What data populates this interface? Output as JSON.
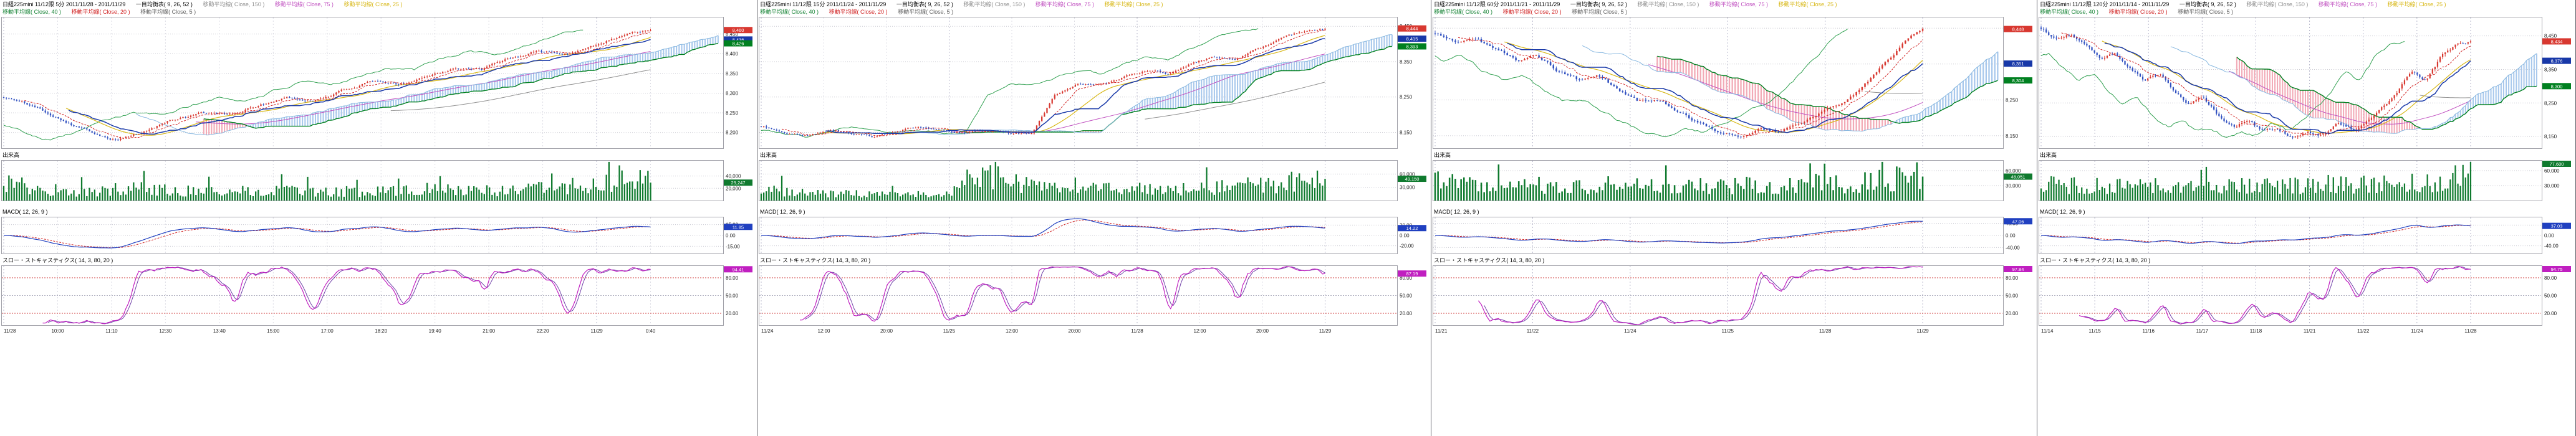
{
  "colors": {
    "up": "#d83830",
    "down": "#3050c0",
    "cloud_up": "#a8c8ec",
    "cloud_down": "#f2aab6",
    "tenkan": "#d02020",
    "kijun": "#1838a8",
    "senkou_a": "#88b8e0",
    "senkou_b": "#008020",
    "chikou": "#30a050",
    "ma25": "#d8b818",
    "ma75": "#c050c0",
    "ma150": "#909090",
    "ma40": "#108030",
    "ma20": "#d02020",
    "ma5": "#606060",
    "ichimoku": "#000000",
    "volume": "#0f7a2e",
    "macd": "#2040c0",
    "macd_signal": "#d02020",
    "stoch_k": "#c01fc0",
    "stoch_d": "#7040a8",
    "grid": "#c8c8d0",
    "axis_text": "#222222",
    "border": "#a0a0a8",
    "guide": "#d04040"
  },
  "chart_data": [
    {
      "type": "candlestick",
      "title": "日経225mini 11/12限 5分 2011/11/28 - 2011/11/29",
      "timeframe": "5分",
      "legend": {
        "ichimoku": "一目均衡表( 9, 26, 52 )",
        "ma150": "移動平均線( Close, 150 )",
        "ma75": "移動平均線( Close, 75 )",
        "ma25": "移動平均線( Close, 25 )",
        "ma40": "移動平均線( Close, 40 )",
        "ma20": "移動平均線( Close, 20 )",
        "ma5": "移動平均線( Close, 5 )"
      },
      "sections": {
        "volume": "出来高",
        "macd": "MACD( 12, 26, 9 )",
        "stoch": "スロー・ストキャスティクス( 14, 3, 80, 20 )"
      },
      "x_labels": [
        "11/28",
        "10:00",
        "11:10",
        "12:30",
        "13:40",
        "15:00",
        "17:00",
        "18:20",
        "19:40",
        "21:00",
        "22:20",
        "11/29",
        "0:40"
      ],
      "y_range": [
        8160,
        8492
      ],
      "y_ticks": [
        8450,
        8400,
        8350,
        8300,
        8250,
        8200
      ],
      "close_anchors": [
        8290,
        8268,
        8238,
        8205,
        8185,
        8202,
        8232,
        8252,
        8242,
        8266,
        8288,
        8280,
        8306,
        8326,
        8318,
        8344,
        8366,
        8358,
        8386,
        8406,
        8398,
        8424,
        8446,
        8462
      ],
      "volume_anchors": [
        30000,
        18000,
        15000,
        21000,
        16000,
        14000,
        17500,
        15000,
        13500,
        16500,
        19500,
        16000,
        19000,
        23000,
        29000,
        40000
      ],
      "volume_max": 65000,
      "volume_ticks": [
        40000,
        20000
      ],
      "macd_range": [
        -25,
        25
      ],
      "macd_ticks": [
        15,
        0,
        -15
      ],
      "stoch_ticks": [
        80,
        50,
        20
      ],
      "n_bars": 250,
      "noise_amp": 5,
      "seed": 101
    },
    {
      "type": "candlestick",
      "title": "日経225mini 11/12限 15分 2011/11/24 - 2011/11/29",
      "timeframe": "15分",
      "legend": {
        "ichimoku": "一目均衡表( 9, 26, 52 )",
        "ma150": "移動平均線( Close, 150 )",
        "ma75": "移動平均線( Close, 75 )",
        "ma25": "移動平均線( Close, 25 )",
        "ma40": "移動平均線( Close, 40 )",
        "ma20": "移動平均線( Close, 20 )",
        "ma5": "移動平均線( Close, 5 )"
      },
      "sections": {
        "volume": "出来高",
        "macd": "MACD( 12, 26, 9 )",
        "stoch": "スロー・ストキャスティクス( 14, 3, 80, 20 )"
      },
      "x_labels": [
        "11/24",
        "12:00",
        "20:00",
        "11/25",
        "12:00",
        "20:00",
        "11/28",
        "12:00",
        "20:00",
        "11/29"
      ],
      "y_range": [
        8105,
        8475
      ],
      "y_ticks": [
        8450,
        8350,
        8250,
        8150
      ],
      "close_anchors": [
        8168,
        8152,
        8142,
        8156,
        8146,
        8136,
        8150,
        8162,
        8150,
        8144,
        8156,
        8150,
        8148,
        8256,
        8292,
        8282,
        8302,
        8322,
        8312,
        8342,
        8362,
        8356,
        8386,
        8412,
        8430,
        8442
      ],
      "volume_anchors": [
        24000,
        18000,
        16000,
        14500,
        15000,
        16500,
        60000,
        38000,
        30000,
        26000,
        28000,
        24500,
        30000,
        34000,
        41000,
        50000
      ],
      "volume_max": 90000,
      "volume_ticks": [
        60000,
        30000
      ],
      "macd_range": [
        -35,
        35
      ],
      "macd_ticks": [
        20,
        0,
        -20
      ],
      "stoch_ticks": [
        80,
        50,
        20
      ],
      "n_bars": 220,
      "noise_amp": 4.5,
      "seed": 202
    },
    {
      "type": "candlestick",
      "title": "日経225mini 11/12限 60分 2011/11/21 - 2011/11/29",
      "timeframe": "60分",
      "legend": {
        "ichimoku": "一目均衡表( 9, 26, 52 )",
        "ma150": "移動平均線( Close, 150 )",
        "ma75": "移動平均線( Close, 75 )",
        "ma25": "移動平均線( Close, 25 )",
        "ma40": "移動平均線( Close, 40 )",
        "ma20": "移動平均線( Close, 20 )",
        "ma5": "移動平均線( Close, 5 )"
      },
      "sections": {
        "volume": "出来高",
        "macd": "MACD( 12, 26, 9 )",
        "stoch": "スロー・ストキャスティクス( 14, 3, 80, 20 )"
      },
      "x_labels": [
        "11/21",
        "11/22",
        "11/24",
        "11/25",
        "11/28",
        "11/29"
      ],
      "y_range": [
        8115,
        8480
      ],
      "y_ticks": [
        8450,
        8350,
        8250,
        8150
      ],
      "close_anchors": [
        8432,
        8412,
        8422,
        8392,
        8362,
        8372,
        8332,
        8302,
        8312,
        8272,
        8242,
        8252,
        8212,
        8182,
        8162,
        8150,
        8172,
        8160,
        8182,
        8212,
        8242,
        8282,
        8342,
        8402,
        8442
      ],
      "volume_anchors": [
        42000,
        30000,
        26000,
        33000,
        28000,
        24500,
        30000,
        26500,
        32000,
        28500,
        34000,
        30500,
        38000,
        34500,
        45000,
        55000
      ],
      "volume_max": 80000,
      "volume_ticks": [
        60000,
        30000
      ],
      "macd_range": [
        -60,
        60
      ],
      "macd_ticks": [
        40,
        0,
        -40
      ],
      "stoch_ticks": [
        80,
        50,
        20
      ],
      "n_bars": 170,
      "noise_amp": 7,
      "seed": 303
    },
    {
      "type": "candlestick",
      "title": "日経225mini 11/12限 120分 2011/11/14 - 2011/11/29",
      "timeframe": "120分",
      "legend": {
        "ichimoku": "一目均衡表( 9, 26, 52 )",
        "ma150": "移動平均線( Close, 150 )",
        "ma75": "移動平均線( Close, 75 )",
        "ma25": "移動平均線( Close, 25 )",
        "ma40": "移動平均線( Close, 40 )",
        "ma20": "移動平均線( Close, 20 )",
        "ma5": "移動平均線( Close, 5 )"
      },
      "sections": {
        "volume": "出来高",
        "macd": "MACD( 12, 26, 9 )",
        "stoch": "スロー・ストキャスティクス( 14, 3, 80, 20 )"
      },
      "x_labels": [
        "11/14",
        "11/15",
        "11/16",
        "11/17",
        "11/18",
        "11/21",
        "11/22",
        "11/24",
        "11/28"
      ],
      "y_range": [
        8115,
        8505
      ],
      "y_ticks": [
        8450,
        8350,
        8250,
        8150
      ],
      "close_anchors": [
        8472,
        8442,
        8456,
        8422,
        8382,
        8396,
        8352,
        8312,
        8332,
        8282,
        8242,
        8262,
        8212,
        8182,
        8202,
        8162,
        8176,
        8152,
        8172,
        8156,
        8182,
        8166,
        8192,
        8232,
        8282,
        8342,
        8312,
        8382,
        8422,
        8436
      ],
      "volume_anchors": [
        38000,
        30000,
        34000,
        28500,
        32000,
        26500,
        30000,
        34000,
        28500,
        32000,
        30000,
        34000,
        32500,
        38000,
        44000,
        52000
      ],
      "volume_max": 80000,
      "volume_ticks": [
        60000,
        30000
      ],
      "macd_range": [
        -70,
        70
      ],
      "macd_ticks": [
        40,
        0,
        -40
      ],
      "stoch_ticks": [
        80,
        50,
        20
      ],
      "n_bars": 170,
      "noise_amp": 8,
      "seed": 404
    }
  ]
}
